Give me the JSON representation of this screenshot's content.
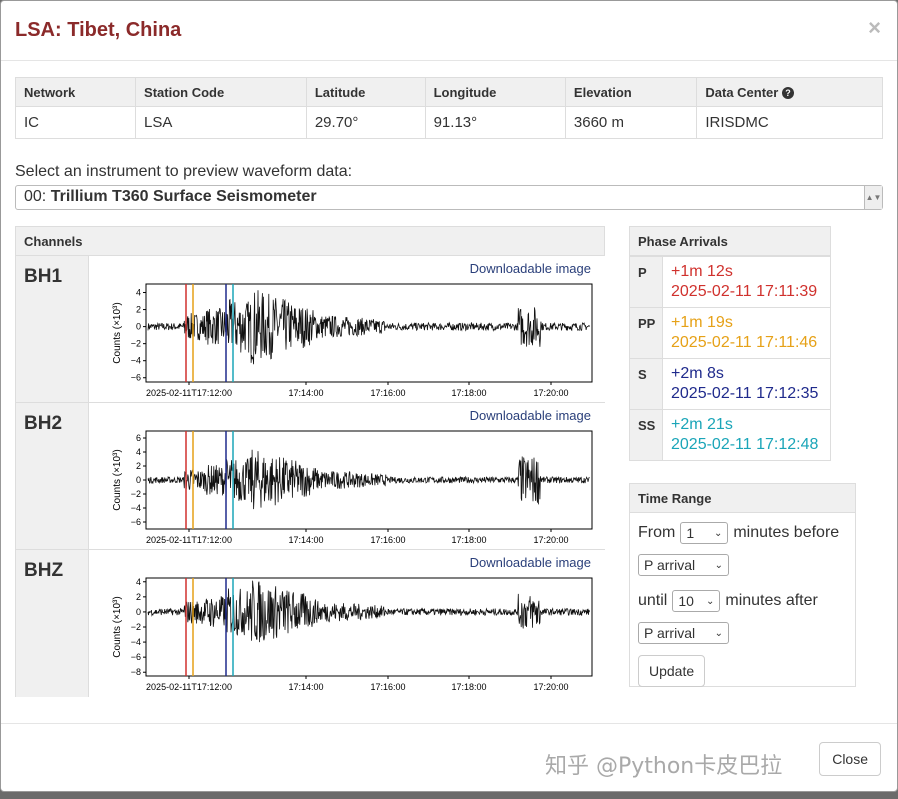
{
  "modal": {
    "title": "LSA: Tibet, China",
    "close_glyph": "×"
  },
  "station": {
    "headers": [
      "Network",
      "Station Code",
      "Latitude",
      "Longitude",
      "Elevation",
      "Data Center"
    ],
    "values": [
      "IC",
      "LSA",
      "29.70°",
      "91.13°",
      "3660 m",
      "IRISDMC"
    ],
    "help_glyph": "?"
  },
  "instrument": {
    "label": "Select an instrument to preview waveform data:",
    "code": "00:",
    "name": "Trillium T360 Surface Seismometer"
  },
  "channels": {
    "heading": "Channels",
    "download_label": "Downloadable image",
    "y_axis_label": "Counts (×10³)",
    "time_ticks": [
      "2025-02-11T17:12:00",
      "17:14:00",
      "17:16:00",
      "17:18:00",
      "17:20:00"
    ],
    "items": [
      {
        "name": "BH1",
        "yticks": [
          "4",
          "2",
          "0",
          "−2",
          "−4",
          "−6"
        ],
        "ylim": [
          -6.5,
          5
        ]
      },
      {
        "name": "BH2",
        "yticks": [
          "6",
          "4",
          "2",
          "0",
          "−2",
          "−4",
          "−6"
        ],
        "ylim": [
          -7,
          7
        ]
      },
      {
        "name": "BHZ",
        "yticks": [
          "4",
          "2",
          "0",
          "−2",
          "−4",
          "−6",
          "−8"
        ],
        "ylim": [
          -8.5,
          4.5
        ]
      }
    ]
  },
  "phases": {
    "heading": "Phase Arrivals",
    "items": [
      {
        "key": "P",
        "offset": "+1m 12s",
        "time": "2025-02-11 17:11:39",
        "color": "#d0312d"
      },
      {
        "key": "PP",
        "offset": "+1m 19s",
        "time": "2025-02-11 17:11:46",
        "color": "#e6a117"
      },
      {
        "key": "S",
        "offset": "+2m 8s",
        "time": "2025-02-11 17:12:35",
        "color": "#1f2a8c"
      },
      {
        "key": "SS",
        "offset": "+2m 21s",
        "time": "2025-02-11 17:12:48",
        "color": "#1aa5b8"
      }
    ]
  },
  "time_range": {
    "heading": "Time Range",
    "from_label": "From",
    "before_value": "1",
    "before_label": "minutes before",
    "before_ref": "P arrival",
    "until_label": "until",
    "after_value": "10",
    "after_label": "minutes after",
    "after_ref": "P arrival",
    "update_label": "Update"
  },
  "footer": {
    "close_label": "Close"
  },
  "watermark": "知乎 @Python卡皮巴拉"
}
